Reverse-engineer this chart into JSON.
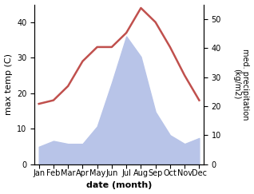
{
  "months": [
    "Jan",
    "Feb",
    "Mar",
    "Apr",
    "May",
    "Jun",
    "Jul",
    "Aug",
    "Sep",
    "Oct",
    "Nov",
    "Dec"
  ],
  "temperature": [
    17,
    18,
    22,
    29,
    33,
    33,
    37,
    44,
    40,
    33,
    25,
    18
  ],
  "precipitation": [
    6,
    8,
    7,
    7,
    13,
    28,
    44,
    37,
    18,
    10,
    7,
    9
  ],
  "temp_color": "#c0504d",
  "precip_fill_color": "#b8c4e8",
  "temp_ylim": [
    0,
    45
  ],
  "precip_ylim": [
    0,
    55
  ],
  "temp_yticks": [
    0,
    10,
    20,
    30,
    40
  ],
  "precip_yticks": [
    0,
    10,
    20,
    30,
    40,
    50
  ],
  "ylabel_left": "max temp (C)",
  "ylabel_right": "med. precipitation\n(kg/m2)",
  "xlabel": "date (month)",
  "bg_color": "#ffffff",
  "line_width": 1.8,
  "tick_fontsize": 7,
  "label_fontsize": 8
}
